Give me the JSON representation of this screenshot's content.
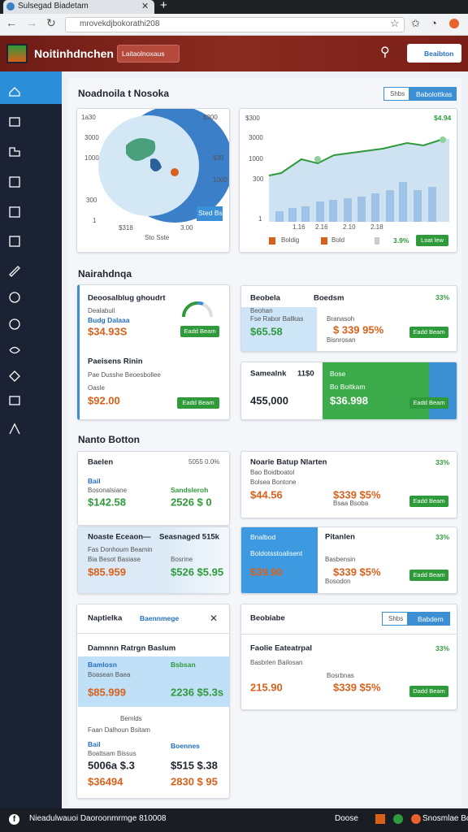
{
  "browser": {
    "tab_title": "Sulsegad Biadetam",
    "url": "mrovekdjbokorathi208"
  },
  "header": {
    "app_name": "Noitinhdnchen",
    "nav_button": "Laitaolnoxaus",
    "action_button": "Beaibton"
  },
  "overview": {
    "title": "Noadnoila t Nosoka",
    "toggle": [
      "Shbs",
      "Babolottkas"
    ],
    "map_chart": {
      "texts": [
        "1a30",
        "$300",
        "3000",
        "$30",
        "1000",
        "1000",
        "300",
        "1",
        "$318",
        "3.00",
        "Sto Sste"
      ],
      "legend": "Sted Bs"
    },
    "line_chart": {
      "y_labels": [
        "$300",
        "3000",
        "1000",
        "300",
        "1"
      ],
      "x_labels": [
        "1.16",
        "2.16",
        "2.10",
        "2.18"
      ],
      "top_label": "$4.94",
      "legend": [
        "Boldig",
        "Bold",
        "3.9%"
      ],
      "button": "Loat lew"
    }
  },
  "section1": {
    "title": "Nairahdnqa",
    "cards": [
      {
        "texts": [
          "Deoosalblug ghoudrt",
          "Dealabuil",
          "Budg Dalaaa",
          "$34.93S",
          "Eadd Beam",
          "Paeisens Rinin",
          "Pae Dusshe Beoesbollee",
          "Oasle",
          "$92.00",
          "Eadd Beam"
        ]
      },
      {
        "texts": [
          "Beobela",
          "Boedsm",
          "33%",
          "Beohan",
          "Fse Rabor Ballkas",
          "$65.58",
          "Branasoh",
          "$ 339 95%",
          "Bisnrosan",
          "Eadd Beam"
        ]
      },
      {
        "texts": [
          "Samealnk",
          "11$0",
          "455,000",
          "Bose",
          "Bo Boltkam",
          "$36.998",
          "Eadd Beam"
        ]
      }
    ]
  },
  "section2": {
    "title": "Nanto Botton",
    "cards": [
      {
        "texts": [
          "Baelen",
          "5055 0.0%",
          "Bail",
          "Bosonalsiane",
          "Sandsleroh",
          "$142.58",
          "2526 $ 0"
        ]
      },
      {
        "texts": [
          "Noaste Eceaon—",
          "Seasnaged 515k",
          "Fas Donhoum Beamin",
          "Bia Besot Basiase",
          "Bosrine",
          "$85.959",
          "$526 $5.95"
        ]
      },
      {
        "texts": [
          "Noarie Batup Nlarten",
          "33%",
          "Bao Boidboatol",
          "Bolsea Bontone",
          "$44.56",
          "$339 $5%",
          "Bsaa Bsoba",
          "Eadd Beam"
        ]
      },
      {
        "texts": [
          "Bnalbod",
          "Boldotsstoalisent",
          "$39.90",
          "Pitanlen",
          "Basbensin",
          "$339 $5%",
          "Bosodon",
          "33%",
          "Eadd Beam"
        ]
      }
    ]
  },
  "dialog": {
    "texts": [
      "Naptielka",
      "Baennmege",
      "Damnnn Ratrgn Baslum",
      "Bamlosn",
      "Bsbsan",
      "Boasean Baea",
      "$85.999",
      "2236 $5.3s",
      "Bemlds",
      "Faan Dalhoun Bsitam",
      "Bail",
      "Boennes",
      "Boattsam Bissus",
      "5006a $.3",
      "$515 $.38",
      "$36494",
      "2830 $ 95"
    ]
  },
  "panel": {
    "texts": [
      "Beobiabe",
      "Shbs",
      "Babdem",
      "Faolie Eateatrpal",
      "33%",
      "Basbrlen Bailosan",
      "Bosrbnas",
      "$339 $5%",
      "215.90",
      "Dadd Beam"
    ]
  },
  "footer": {
    "texts": [
      "Nieadulwauoi Daoroonmrmge 810008",
      "Doose",
      "Snosmlae Bosoor"
    ]
  }
}
